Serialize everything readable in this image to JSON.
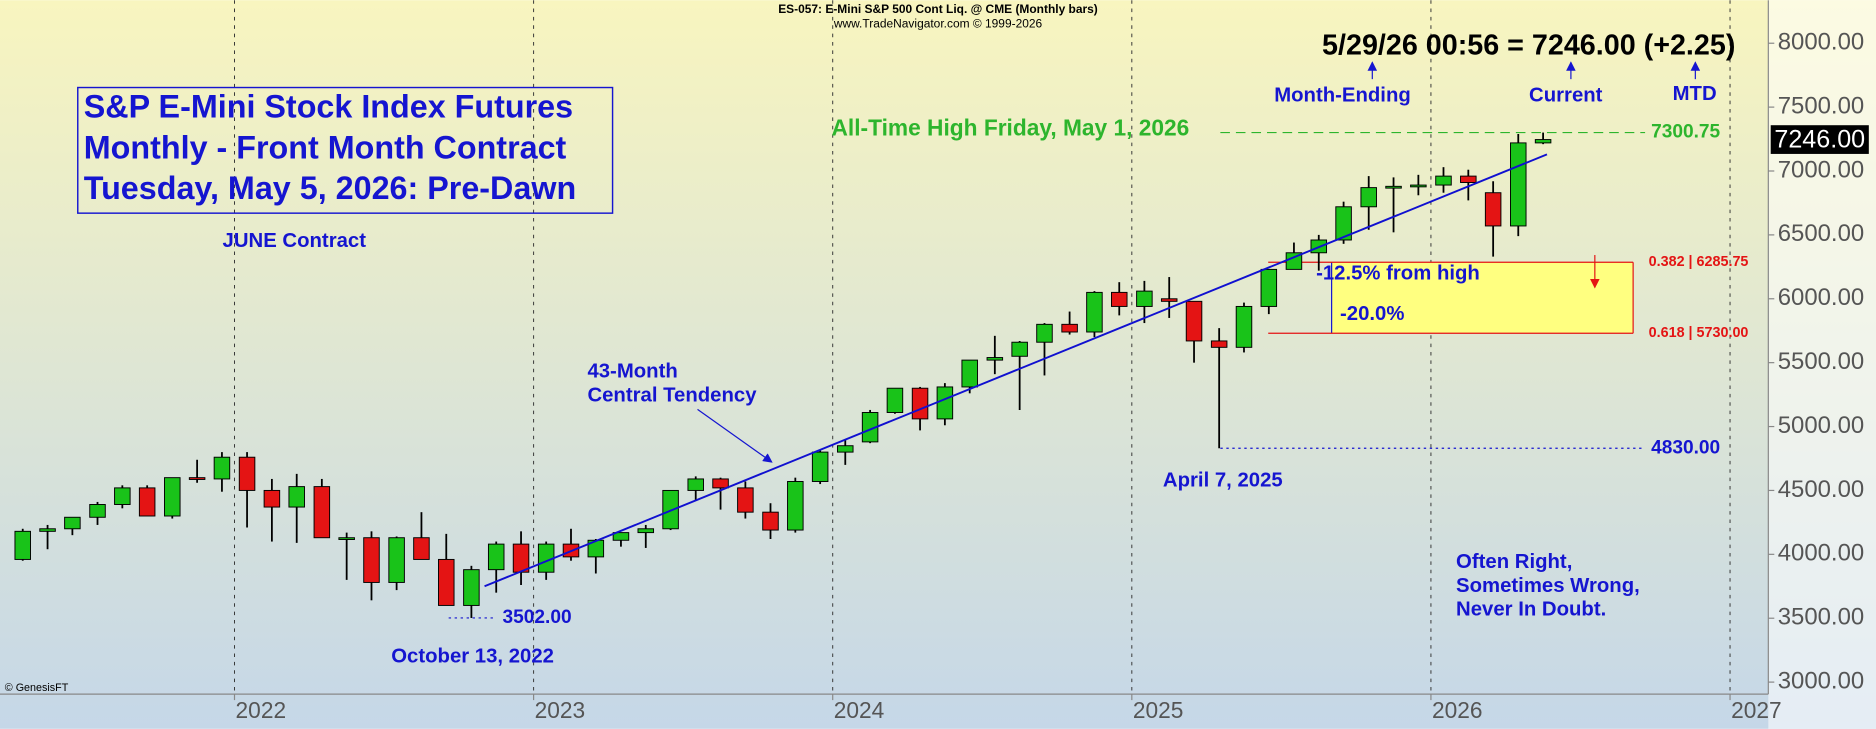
{
  "chart_data": {
    "type": "candlestick",
    "subtitle": [
      "ES-057: E-Mini S&P 500 Cont Liq. @ CME (Monthly bars)",
      "www.TradeNavigator.com © 1999-2026"
    ],
    "title": [
      "S&P E-Mini Stock Index Futures",
      "Monthly - Front Month Contract",
      "Tuesday, May 5, 2026: Pre-Dawn"
    ],
    "contract": "JUNE Contract",
    "quote": "5/29/26 00:56 = 7246.00 (+2.25)",
    "markers": [
      "Month-Ending",
      "Current",
      "MTD"
    ],
    "trend_label": [
      "43-Month",
      "Central Tendency"
    ],
    "date_labels": [
      "October 13, 2022",
      "April 7, 2025"
    ],
    "ath_label": "All-Time High Friday, May 1, 2026",
    "drawdown_labels": [
      "-12.5% from high",
      "-20.0%"
    ],
    "motto": [
      "Often Right,",
      "Sometimes Wrong,",
      "Never In Doubt."
    ],
    "copyright": "© GenesisFT",
    "x": [
      2021.292,
      2021.375,
      2021.458,
      2021.542,
      2021.625,
      2021.708,
      2021.792,
      2021.875,
      2021.958,
      2022.042,
      2022.125,
      2022.208,
      2022.292,
      2022.375,
      2022.458,
      2022.542,
      2022.625,
      2022.708,
      2022.792,
      2022.875,
      2022.958,
      2023.042,
      2023.125,
      2023.208,
      2023.292,
      2023.375,
      2023.458,
      2023.542,
      2023.625,
      2023.708,
      2023.792,
      2023.875,
      2023.958,
      2024.042,
      2024.125,
      2024.208,
      2024.292,
      2024.375,
      2024.458,
      2024.542,
      2024.625,
      2024.708,
      2024.792,
      2024.875,
      2024.958,
      2025.042,
      2025.125,
      2025.208,
      2025.292,
      2025.375,
      2025.458,
      2025.542,
      2025.625,
      2025.708,
      2025.792,
      2025.875,
      2025.958,
      2026.042,
      2026.125,
      2026.208,
      2026.292,
      2026.375
    ],
    "open": [
      3960,
      4180,
      4200,
      4290,
      4390,
      4520,
      4300,
      4600,
      4590,
      4760,
      4500,
      4370,
      4530,
      4130,
      4130,
      3780,
      4130,
      3960,
      3600,
      3880,
      4080,
      3860,
      4080,
      3980,
      4110,
      4170,
      4200,
      4500,
      4590,
      4520,
      4330,
      4190,
      4570,
      4800,
      4880,
      5110,
      5300,
      5060,
      5310,
      5520,
      5550,
      5660,
      5800,
      5740,
      6050,
      5940,
      6000,
      5980,
      5670,
      5620,
      5940,
      6230,
      6360,
      6460,
      6720,
      6870,
      6880,
      6890,
      6960,
      6830,
      6570,
      7220
    ],
    "high": [
      4200,
      4230,
      4290,
      4410,
      4540,
      4540,
      4600,
      4740,
      4800,
      4800,
      4590,
      4630,
      4590,
      4170,
      4180,
      4140,
      4330,
      4160,
      3910,
      4100,
      4180,
      4100,
      4200,
      4120,
      4170,
      4230,
      4490,
      4610,
      4600,
      4570,
      4400,
      4600,
      4820,
      4900,
      5130,
      5300,
      5310,
      5340,
      5520,
      5710,
      5670,
      5810,
      5900,
      6060,
      6130,
      6140,
      6170,
      5980,
      5770,
      5970,
      6230,
      6440,
      6500,
      6760,
      6960,
      6950,
      6970,
      7030,
      7010,
      6920,
      7290,
      7300.75
    ],
    "low": [
      3950,
      4040,
      4150,
      4230,
      4360,
      4300,
      4280,
      4560,
      4490,
      4210,
      4100,
      4090,
      4130,
      3800,
      3640,
      3720,
      3960,
      3600,
      3502,
      3700,
      3760,
      3800,
      3950,
      3850,
      4060,
      4050,
      4190,
      4420,
      4350,
      4280,
      4120,
      4170,
      4550,
      4700,
      4870,
      5100,
      4970,
      5010,
      5260,
      5410,
      5130,
      5400,
      5720,
      5700,
      5870,
      5810,
      5850,
      5500,
      4830,
      5580,
      5880,
      6230,
      6220,
      6430,
      6540,
      6520,
      6810,
      6830,
      6770,
      6330,
      6490,
      7210
    ],
    "close": [
      4180,
      4200,
      4290,
      4390,
      4520,
      4300,
      4600,
      4590,
      4760,
      4500,
      4370,
      4530,
      4130,
      4130,
      3780,
      4130,
      3960,
      3600,
      3880,
      4080,
      3860,
      4080,
      3980,
      4110,
      4170,
      4200,
      4500,
      4590,
      4520,
      4330,
      4190,
      4570,
      4800,
      4850,
      5110,
      5300,
      5060,
      5310,
      5520,
      5540,
      5660,
      5800,
      5740,
      6050,
      5940,
      6060,
      5980,
      5670,
      5620,
      5940,
      6230,
      6360,
      6460,
      6720,
      6870,
      6880,
      6890,
      6960,
      6910,
      6570,
      7220,
      7246
    ],
    "up_color": "#19c319",
    "down_color": "#e41414",
    "trend_line": {
      "x": [
        2022.836,
        2026.388
      ],
      "values": [
        3750,
        7130
      ],
      "color": "#1010d0"
    },
    "levels": [
      {
        "value": 7300.75,
        "label": "7300.75",
        "color": "#2db52d"
      },
      {
        "value": 4830,
        "label": "4830.00",
        "color": "#1515d0"
      },
      {
        "value": 3502,
        "label": "3502.00",
        "color": "#1515d0"
      }
    ],
    "retracement": [
      {
        "value": 6285.75,
        "label": "0.382 | 6285.75"
      },
      {
        "value": 5730,
        "label": "0.618 | 5730.00"
      }
    ],
    "retracement_color": "#e41414",
    "zone_color": "#ffff80",
    "last_price": {
      "value": 7246,
      "label": "7246.00"
    },
    "xlim": [
      2021.216,
      2027.128
    ],
    "xticks": [
      2022,
      2023,
      2024,
      2025,
      2026,
      2027
    ],
    "ylim": [
      2906,
      8084
    ],
    "yticks": [
      {
        "value": 3000,
        "label": "3000.00"
      },
      {
        "value": 3500,
        "label": "3500.00"
      },
      {
        "value": 4000,
        "label": "4000.00"
      },
      {
        "value": 4500,
        "label": "4500.00"
      },
      {
        "value": 5000,
        "label": "5000.00"
      },
      {
        "value": 5500,
        "label": "5500.00"
      },
      {
        "value": 6000,
        "label": "6000.00"
      },
      {
        "value": 6500,
        "label": "6500.00"
      },
      {
        "value": 7000,
        "label": "7000.00"
      },
      {
        "value": 7500,
        "label": "7500.00"
      },
      {
        "value": 8000,
        "label": "8000.00"
      }
    ],
    "grid": "x"
  }
}
